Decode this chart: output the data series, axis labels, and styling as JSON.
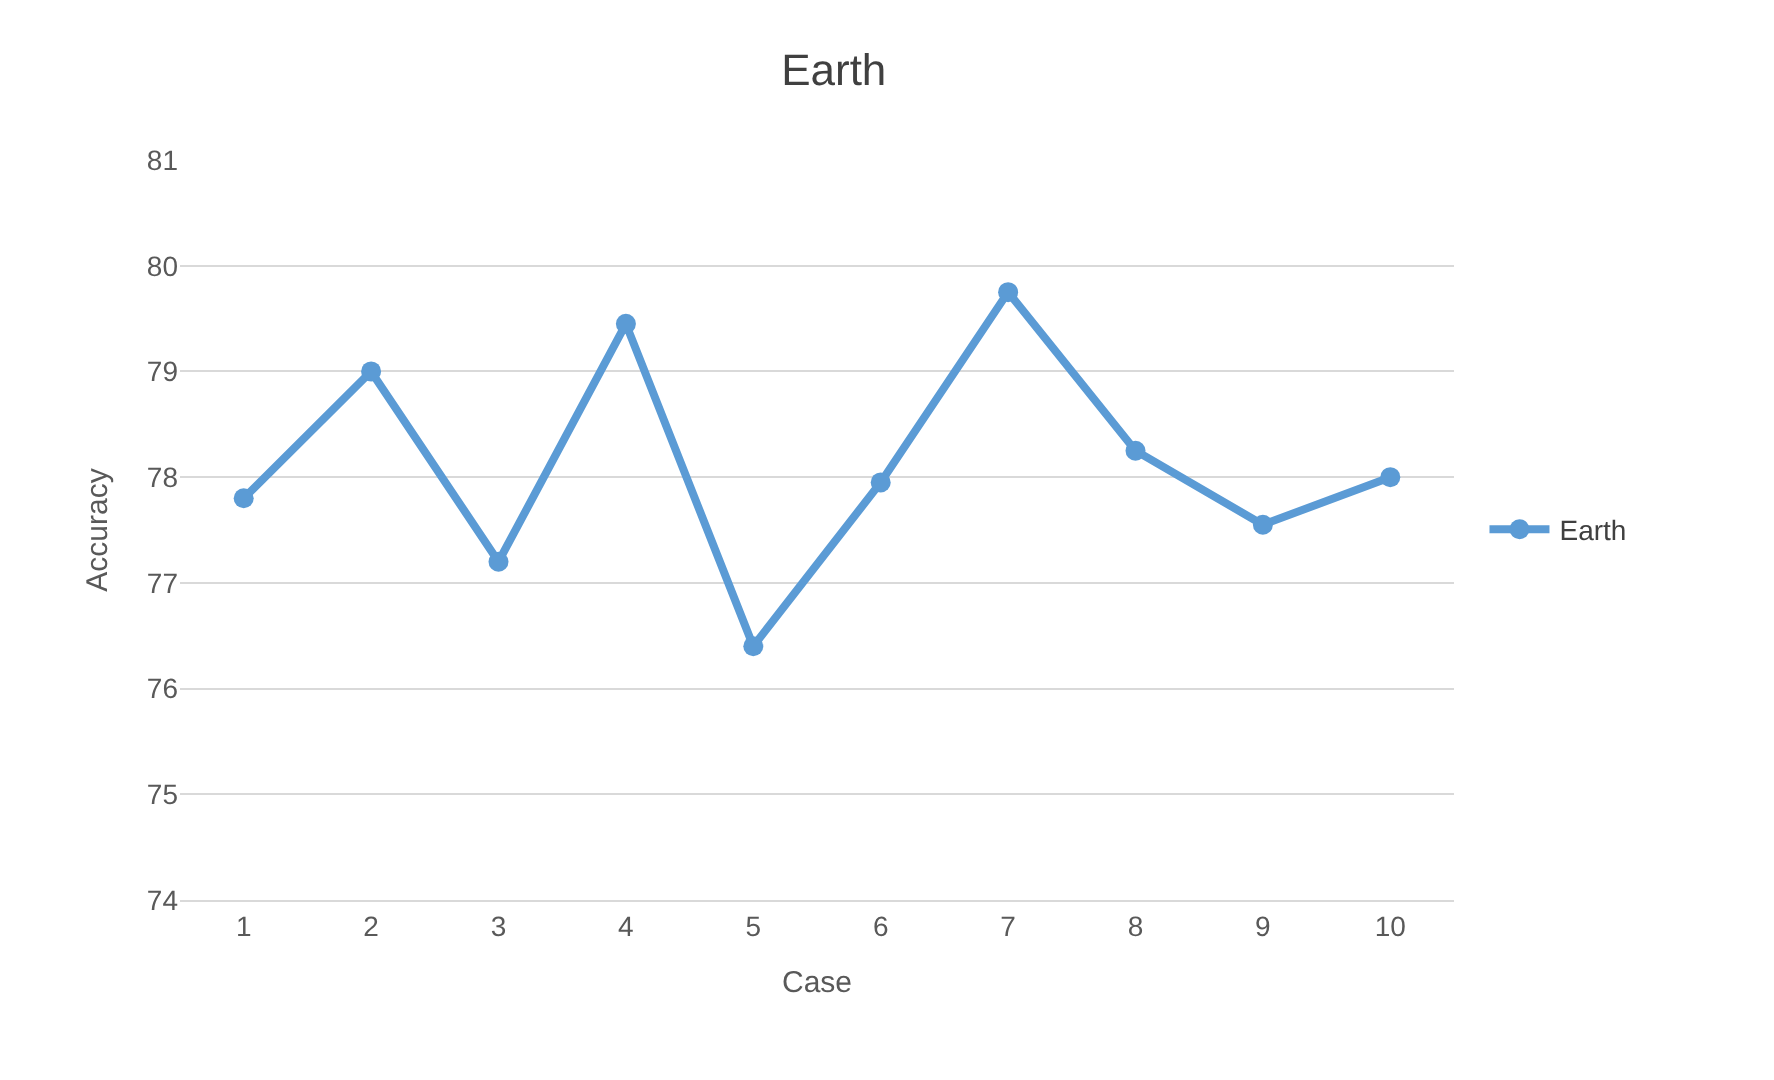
{
  "chart_data": {
    "type": "line",
    "title": "Earth",
    "xlabel": "Case",
    "ylabel": "Accuracy",
    "categories": [
      "1",
      "2",
      "3",
      "4",
      "5",
      "6",
      "7",
      "8",
      "9",
      "10"
    ],
    "series": [
      {
        "name": "Earth",
        "color": "#5b9bd5",
        "values": [
          77.8,
          79.0,
          77.2,
          79.45,
          76.4,
          77.95,
          79.75,
          78.25,
          77.55,
          78.0
        ]
      }
    ],
    "ylim": [
      74,
      81
    ],
    "yticks": [
      74,
      75,
      76,
      77,
      78,
      79,
      80,
      81
    ],
    "grid": "y",
    "legend": "right",
    "marker": "circle",
    "line_style": "solid"
  }
}
